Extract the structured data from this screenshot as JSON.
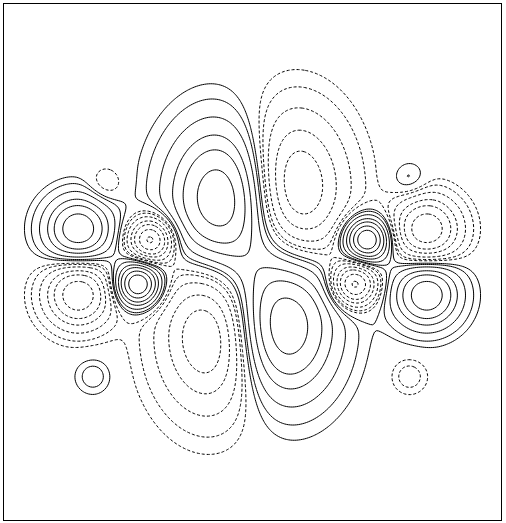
{
  "chart_data": {
    "type": "contour",
    "tick_labels": false,
    "xlim": [
      -10,
      10
    ],
    "ylim": [
      -10.4,
      10.4
    ],
    "lobes": [
      {
        "x": -1.1,
        "y": 2.5,
        "sx": 1.5,
        "sy": 2.0,
        "amplitude": 1.0
      },
      {
        "x": 1.5,
        "y": 2.9,
        "sx": 1.5,
        "sy": 2.1,
        "amplitude": -0.8
      },
      {
        "x": -1.5,
        "y": -2.9,
        "sx": 1.5,
        "sy": 2.1,
        "amplitude": -0.8
      },
      {
        "x": 1.1,
        "y": -2.5,
        "sx": 1.5,
        "sy": 2.0,
        "amplitude": 1.0
      },
      {
        "x": -4.6,
        "y": -0.9,
        "sx": 0.6,
        "sy": 0.6,
        "amplitude": 1.2
      },
      {
        "x": -4.1,
        "y": 0.9,
        "sx": 0.6,
        "sy": 0.6,
        "amplitude": -1.0
      },
      {
        "x": 4.6,
        "y": 0.9,
        "sx": 0.6,
        "sy": 0.6,
        "amplitude": 1.2
      },
      {
        "x": 4.1,
        "y": -0.9,
        "sx": 0.6,
        "sy": 0.6,
        "amplitude": -1.0
      },
      {
        "x": -7.0,
        "y": 1.3,
        "sx": 0.9,
        "sy": 0.9,
        "amplitude": 0.9
      },
      {
        "x": -7.0,
        "y": -1.3,
        "sx": 0.9,
        "sy": 0.9,
        "amplitude": -0.9
      },
      {
        "x": 7.0,
        "y": 1.3,
        "sx": 0.9,
        "sy": 0.9,
        "amplitude": -0.9
      },
      {
        "x": 7.0,
        "y": -1.3,
        "sx": 0.9,
        "sy": 0.9,
        "amplitude": 0.9
      },
      {
        "x": -5.9,
        "y": 3.1,
        "sx": 0.5,
        "sy": 0.5,
        "amplitude": -0.15
      },
      {
        "x": 6.3,
        "y": 3.3,
        "sx": 0.5,
        "sy": 0.5,
        "amplitude": 0.15
      },
      {
        "x": -6.4,
        "y": -4.6,
        "sx": 0.5,
        "sy": 0.5,
        "amplitude": 0.15
      },
      {
        "x": 6.3,
        "y": -4.6,
        "sx": 0.5,
        "sy": 0.5,
        "amplitude": -0.15
      }
    ],
    "series": [
      {
        "line_style": "solid",
        "color": "#000000",
        "levels": [
          0.05,
          0.1,
          0.2,
          0.35,
          0.5,
          0.7,
          0.9
        ]
      },
      {
        "line_style": "dashed",
        "color": "#000000",
        "levels": [
          -0.05,
          -0.1,
          -0.2,
          -0.35,
          -0.5,
          -0.7,
          -0.9
        ]
      }
    ]
  }
}
